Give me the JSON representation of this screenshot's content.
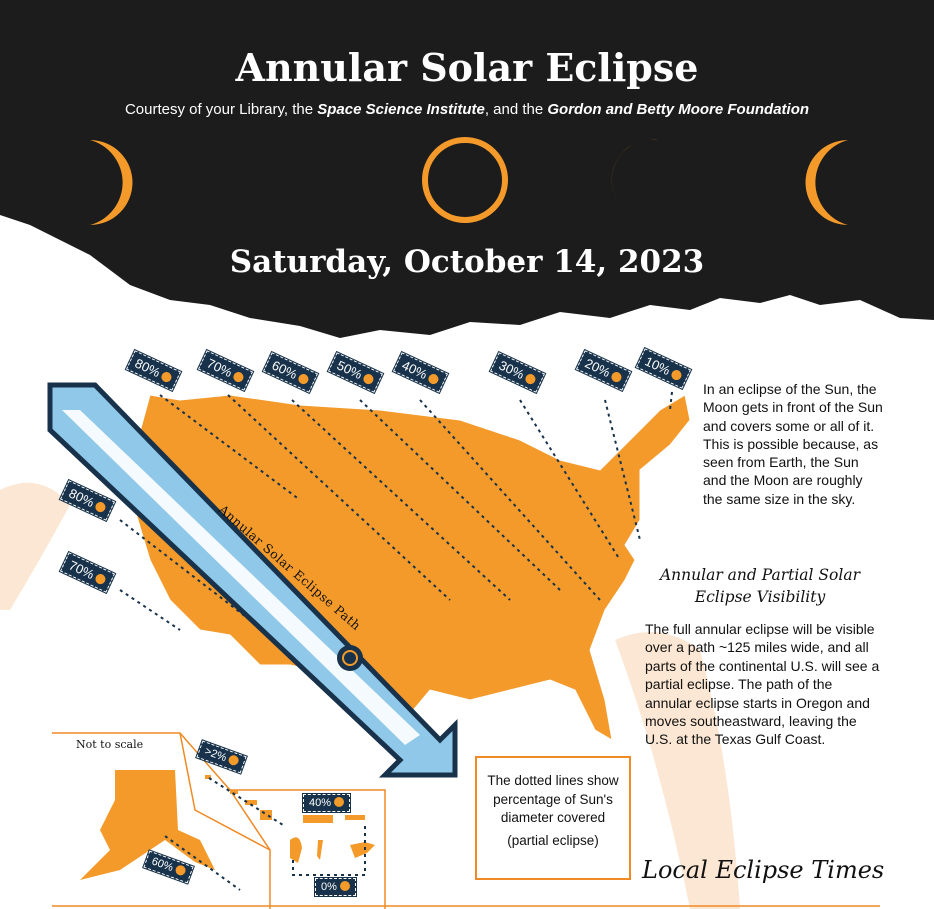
{
  "header": {
    "title": "Annular Solar Eclipse",
    "subtitle_prefix": "Courtesy of your Library, the ",
    "subtitle_org1": "Space Science Institute",
    "subtitle_mid": ", and the ",
    "subtitle_org2": "Gordon and Betty Moore Foundation",
    "date": "Saturday, October 14, 2023"
  },
  "colors": {
    "background_dark": "#1c1c1c",
    "accent_orange": "#f39a2b",
    "path_blue": "#8fc8e8",
    "navy": "#17324a",
    "peach": "#fbe7d3"
  },
  "map": {
    "path_label": "Annular Solar Eclipse Path",
    "tags_top": [
      "80%",
      "70%",
      "60%",
      "50%",
      "40%",
      "30%",
      "20%",
      "10%"
    ],
    "tags_west": [
      "80%",
      "70%"
    ],
    "inset_note": "Not to scale",
    "inset_tags": {
      "hawaii": ">2%",
      "puerto_rico": "40%",
      "alaska": "60%",
      "pacific": "0%"
    }
  },
  "intro_text": "In an eclipse of the Sun, the Moon gets in front of the Sun and covers some or all of it. This is possible because, as seen from Earth, the Sun and the Moon are roughly the same size in the sky.",
  "visibility": {
    "heading": "Annular and Partial Solar Eclipse Visibility",
    "text": "The full annular eclipse will be visible over a path ~125 miles wide, and all parts of the continental U.S. will see a partial eclipse. The path of the annular eclipse starts in Oregon and moves southeastward, leaving the U.S. at the Texas Gulf Coast."
  },
  "legend_note": {
    "line1": "The dotted lines show percentage of Sun's diameter covered",
    "line2": "(partial eclipse)"
  },
  "local_times_heading": "Local Eclipse Times"
}
